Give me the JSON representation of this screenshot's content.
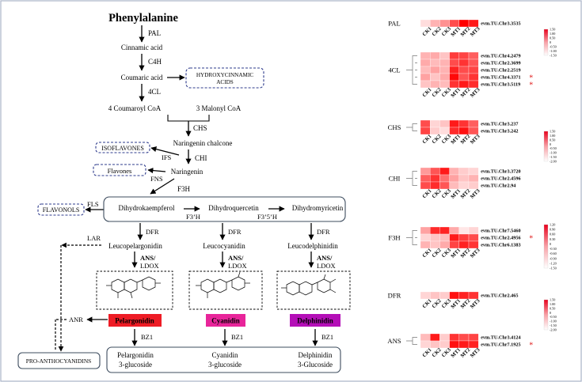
{
  "pathway": {
    "start": "Phenylalanine",
    "pal": "PAL",
    "cinnamic": "Cinnamic  acid",
    "c4h": "C4H",
    "coumaric": "Coumaric  acid",
    "hydroxy_line1": "HYDROXYCINNAMIC",
    "hydroxy_line2": "ACIDS",
    "four_cl": "4CL",
    "coumaroyl": "4 Coumaroyl  CoA",
    "malonyl": "3 Malonyl  CoA",
    "chs": "CHS",
    "naringenin_chalcone": "Naringenin  chalcone",
    "isoflavones": "ISOFLAVONES",
    "ifs": "IFS",
    "chi": "CHI",
    "flavones": "Flavones",
    "fns": "FNS",
    "naringenin": "Naringenin",
    "f3h": "F3H",
    "fls": "FLS",
    "flavonols": "FLAVONOLS",
    "dihydrokaempferol": "Dihydrokaempferol",
    "dihydroquercetin": "Dihydroquercetin",
    "dihydromyricetin": "Dihydromyricetin",
    "f3ph": "F3’H",
    "f35h": "F3’5’H",
    "lar": "LAR",
    "dfr_1": "DFR",
    "dfr_2": "DFR",
    "dfr_3": "DFR",
    "leucopelargonidin": "Leucopelargonidin",
    "leucocyanidin": "Leucocyanidin",
    "leucodelphinidin": "Leucodelphinidin",
    "ans_1": "ANS/",
    "ans_2": "ANS/",
    "ans_3": "ANS/",
    "ldox_1": "LDOX",
    "ldox_2": "LDOX",
    "ldox_3": "LDOX",
    "anr": "ANR",
    "pelargonidin": "Pelargonidin",
    "cyanidin": "Cyanidin",
    "delphinidin": "Delphinidin",
    "bz1_1": "BZ1",
    "bz1_2": "BZ1",
    "bz1_3": "BZ1",
    "proanthocyanidins": "PRO-ANTHOCYANIDINS",
    "pel_glc_1": "Pelargonidin",
    "pel_glc_2": "3-glucoside",
    "cya_glc_1": "Cyanidin",
    "cya_glc_2": "3-glucoside",
    "del_glc_1": "Delphinidin",
    "del_glc_2": "3-Glucoside",
    "colors": {
      "pelargonidin": "#ee1c25",
      "cyanidin": "#e8259a",
      "delphinidin": "#b40fb7",
      "dashed_box": "#2e3b8c",
      "solid_box": "#3d4c5e"
    }
  },
  "heatmaps": {
    "columns": [
      "CK1",
      "CK2",
      "CK3",
      "MT1",
      "MT2",
      "MT3"
    ],
    "panels": [
      {
        "gene": "PAL",
        "ids": [
          "evm.TU.Chr3.3535"
        ],
        "values": [
          [
            -1.1,
            -0.6,
            -0.2,
            0.6,
            1.5,
            1.2
          ]
        ],
        "starred": [
          false
        ],
        "ticks": []
      },
      {
        "gene": "4CL",
        "ids": [
          "evm.TU.Chr4.2479",
          "evm.TU.Chr2.3699",
          "evm.TU.Chr2.2519",
          "evm.TU.Chr4.3371",
          "evm.TU.Chr3.5119"
        ],
        "values": [
          [
            -0.6,
            -0.5,
            -0.8,
            0.8,
            0.7,
            0.4
          ],
          [
            -0.5,
            -0.7,
            -0.6,
            0.6,
            0.9,
            0.5
          ],
          [
            -0.7,
            -0.4,
            -0.6,
            1.1,
            0.6,
            0.7
          ],
          [
            -0.4,
            -0.8,
            -0.5,
            1.4,
            0.5,
            0.9
          ],
          [
            -0.8,
            -0.6,
            -0.7,
            0.9,
            1.2,
            1.0
          ]
        ],
        "starred": [
          false,
          false,
          false,
          true,
          true
        ],
        "ticks": [
          "1.50",
          "1.00",
          "0.50",
          "0",
          "-0.50",
          "-1.00",
          "-1.50"
        ]
      },
      {
        "gene": "CHS",
        "ids": [
          "evm.TU.Chr3.237",
          "evm.TU.Chr3.242"
        ],
        "values": [
          [
            0.6,
            -1.0,
            -0.8,
            1.2,
            0.9,
            0.4
          ],
          [
            0.7,
            -0.9,
            -1.1,
            1.0,
            1.3,
            0.5
          ]
        ],
        "starred": [
          false,
          false
        ],
        "ticks": [
          "1.50",
          "1.00",
          "0.50",
          "0",
          "-0.50",
          "-1.00",
          "-1.50",
          "-2.00"
        ]
      },
      {
        "gene": "CHI",
        "ids": [
          "evm.TU.Chr3.3720",
          "evm.TU.Chr2.4596",
          "evm.TU.Chr2.94"
        ],
        "values": [
          [
            -0.3,
            0.5,
            1.2,
            -0.6,
            -0.9,
            -1.0
          ],
          [
            0.4,
            0.9,
            0.2,
            -0.4,
            -0.8,
            -0.6
          ],
          [
            0.6,
            1.0,
            0.5,
            -0.7,
            -1.0,
            -0.9
          ]
        ],
        "starred": [
          false,
          false,
          false
        ],
        "ticks": []
      },
      {
        "gene": "F3H",
        "ids": [
          "evm.TU.Chr7.5460",
          "evm.TU.Chr2.4956",
          "evm.TU.Chr6.1383"
        ],
        "values": [
          [
            -0.4,
            1.0,
            1.1,
            -0.5,
            -1.2,
            -1.0
          ],
          [
            -1.0,
            -0.8,
            -0.7,
            1.2,
            0.8,
            0.6
          ],
          [
            -0.6,
            -0.8,
            -0.5,
            0.7,
            1.1,
            0.9
          ]
        ],
        "starred": [
          false,
          true,
          false
        ],
        "ticks": [
          "1.20",
          "0.90",
          "0.60",
          "0.30",
          "0",
          "-0.30",
          "-0.60",
          "-0.90",
          "-1.20",
          "-1.50"
        ]
      },
      {
        "gene": "DFR",
        "ids": [
          "evm.TU.Chr2.465"
        ],
        "values": [
          [
            -1.0,
            -0.8,
            -0.9,
            1.3,
            1.1,
            0.9
          ]
        ],
        "starred": [
          false
        ],
        "ticks": []
      },
      {
        "gene": "ANS",
        "ids": [
          "evm.TU.Chr3.4124",
          "evm.TU.Chr7.1925"
        ],
        "values": [
          [
            -0.7,
            1.2,
            -0.9,
            0.9,
            0.6,
            0.7
          ],
          [
            -1.0,
            -0.8,
            -0.9,
            1.3,
            1.2,
            1.1
          ]
        ],
        "starred": [
          false,
          true
        ],
        "ticks": [
          "1.50",
          "1.00",
          "0.50",
          "0",
          "-0.50",
          "-1.00",
          "-1.50",
          "-2.00"
        ]
      }
    ]
  }
}
